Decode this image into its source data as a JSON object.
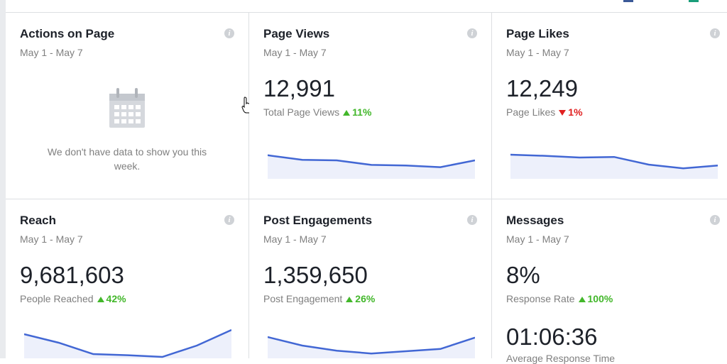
{
  "colors": {
    "accent_up": "#42b72a",
    "accent_down": "#e02020",
    "spark_line": "#4267d4",
    "spark_fill": "#edf0fb"
  },
  "cards": {
    "actions": {
      "title": "Actions on Page",
      "date_range": "May 1 - May 7",
      "empty_message": "We don't have data to show you this week."
    },
    "page_views": {
      "title": "Page Views",
      "date_range": "May 1 - May 7",
      "value": "12,991",
      "label": "Total Page Views",
      "delta": "11%",
      "delta_direction": "up",
      "trend": [
        0.78,
        0.62,
        0.6,
        0.44,
        0.42,
        0.36,
        0.6
      ]
    },
    "page_likes": {
      "title": "Page Likes",
      "date_range": "May 1 - May 7",
      "value": "12,249",
      "label": "Page Likes",
      "delta": "1%",
      "delta_direction": "down",
      "trend": [
        0.8,
        0.76,
        0.7,
        0.72,
        0.45,
        0.32,
        0.42
      ]
    },
    "reach": {
      "title": "Reach",
      "date_range": "May 1 - May 7",
      "value": "9,681,603",
      "label": "People Reached",
      "delta": "42%",
      "delta_direction": "up",
      "trend": [
        0.8,
        0.5,
        0.1,
        0.06,
        0.0,
        0.4,
        0.95
      ]
    },
    "post_engagements": {
      "title": "Post Engagements",
      "date_range": "May 1 - May 7",
      "value": "1,359,650",
      "label": "Post Engagement",
      "delta": "26%",
      "delta_direction": "up",
      "trend": [
        0.7,
        0.4,
        0.22,
        0.12,
        0.2,
        0.28,
        0.68
      ]
    },
    "messages": {
      "title": "Messages",
      "date_range": "May 1 - May 7",
      "value": "8%",
      "label": "Response Rate",
      "delta": "100%",
      "delta_direction": "up",
      "second_value": "01:06:36",
      "second_label": "Average Response Time"
    }
  }
}
